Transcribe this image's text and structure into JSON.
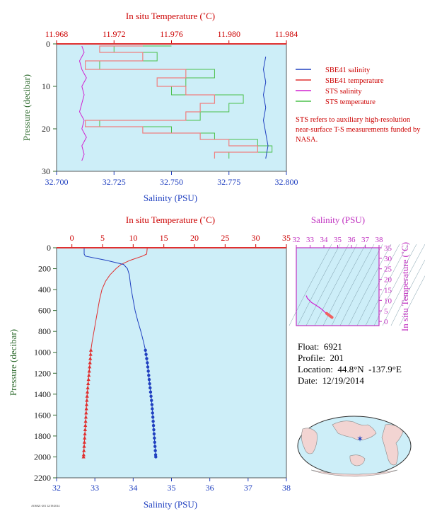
{
  "colors": {
    "temperature": "#e03030",
    "salinity": "#2040c0",
    "plot_bg": "#cdeef8",
    "sts_salinity": "#d020d0",
    "sts_temperature": "#4cc04c",
    "pressure_axis": "#2e6b2e",
    "ts_axis": "#c030c0"
  },
  "info": {
    "float_label": "Float:",
    "float_value": "6921",
    "profile_label": "Profile:",
    "profile_value": "201",
    "location_label": "Location:",
    "location_value": "44.8°N  -137.9°E",
    "date_label": "Date:",
    "date_value": "12/19/2014"
  },
  "note": "STS refers to auxiliary high-resolution near-surface T-S measurements funded by NASA.",
  "footer_code": "AO6921-201 12/19/2014",
  "chart_data": [
    {
      "id": "near-surface",
      "type": "line",
      "top_axis_label": "In situ Temperature (˚C)",
      "bottom_axis_label": "Salinity (PSU)",
      "left_axis_label": "Pressure (decibar)",
      "temperature_ticks": [
        "11.968",
        "11.972",
        "11.976",
        "11.980",
        "11.984"
      ],
      "temperature_range": [
        11.968,
        11.984
      ],
      "salinity_ticks": [
        "32.700",
        "32.725",
        "32.750",
        "32.775",
        "32.800"
      ],
      "salinity_range": [
        32.7,
        32.8
      ],
      "pressure_ticks": [
        "0",
        "10",
        "20",
        "30"
      ],
      "pressure_range": [
        0,
        30
      ],
      "legend": [
        {
          "label": "SBE41 salinity",
          "color": "#2040c0"
        },
        {
          "label": "SBE41 temperature",
          "color": "#e03030"
        },
        {
          "label": "STS salinity",
          "color": "#d020d0"
        },
        {
          "label": "STS temperature",
          "color": "#4cc04c"
        }
      ],
      "sbe41_salinity": {
        "pressure": [
          3,
          6,
          9,
          12,
          15,
          18,
          21,
          24,
          27
        ],
        "salinity": [
          32.791,
          32.79,
          32.791,
          32.79,
          32.791,
          32.79,
          32.791,
          32.792,
          32.791
        ]
      },
      "sts_salinity": {
        "pressure": [
          0.5,
          2,
          4,
          6,
          8,
          10,
          12,
          14,
          16,
          18,
          20,
          22,
          24,
          26,
          27.5
        ],
        "salinity": [
          32.711,
          32.712,
          32.71,
          32.711,
          32.713,
          32.711,
          32.712,
          32.711,
          32.71,
          32.712,
          32.711,
          32.713,
          32.711,
          32.712,
          32.711
        ]
      },
      "sts_temperature": {
        "pressure": [
          0.5,
          2,
          4,
          6,
          8,
          10,
          12,
          14,
          16,
          18,
          19.5,
          21,
          22.5,
          24,
          25.5,
          27
        ],
        "temperature": [
          11.976,
          11.972,
          11.975,
          11.971,
          11.979,
          11.977,
          11.976,
          11.981,
          11.98,
          11.978,
          11.971,
          11.976,
          11.979,
          11.982,
          11.983,
          11.98
        ]
      },
      "sbe41_temperature": {
        "pressure": [
          0.5,
          2,
          4,
          6,
          8,
          10,
          12,
          14,
          16,
          18,
          19.5,
          21,
          22.5,
          24,
          25.5,
          27
        ],
        "temperature": [
          11.974,
          11.971,
          11.974,
          11.97,
          11.977,
          11.975,
          11.977,
          11.979,
          11.978,
          11.977,
          11.97,
          11.974,
          11.978,
          11.98,
          11.982,
          11.979
        ]
      }
    },
    {
      "id": "full-profile",
      "type": "line",
      "top_axis_label": "In situ Temperature (˚C)",
      "bottom_axis_label": "Salinity (PSU)",
      "left_axis_label": "Pressure (decibar)",
      "temperature_ticks": [
        "0",
        "5",
        "10",
        "15",
        "20",
        "25",
        "30",
        "35"
      ],
      "temperature_range": [
        -2.5,
        35
      ],
      "salinity_ticks": [
        "32",
        "33",
        "34",
        "35",
        "36",
        "37",
        "38"
      ],
      "salinity_range": [
        32,
        38
      ],
      "pressure_ticks": [
        "0",
        "200",
        "400",
        "600",
        "800",
        "1000",
        "1200",
        "1400",
        "1600",
        "1800",
        "2000",
        "2200"
      ],
      "pressure_range": [
        0,
        2200
      ],
      "temperature": {
        "pressure": [
          0,
          60,
          80,
          120,
          160,
          200,
          260,
          320,
          400,
          500,
          600,
          700,
          800,
          900,
          980,
          1100,
          1200,
          1300,
          1400,
          1500,
          1600,
          1700,
          1800,
          1900,
          2000
        ],
        "values": [
          12.3,
          12.2,
          11.5,
          9.5,
          8.0,
          7.2,
          6.2,
          5.5,
          4.9,
          4.5,
          4.2,
          3.9,
          3.6,
          3.3,
          3.1,
          2.95,
          2.8,
          2.65,
          2.5,
          2.4,
          2.3,
          2.2,
          2.1,
          2.0,
          1.9
        ]
      },
      "salinity": {
        "pressure": [
          0,
          60,
          80,
          120,
          160,
          200,
          260,
          320,
          400,
          500,
          600,
          700,
          800,
          900,
          980,
          1100,
          1200,
          1300,
          1400,
          1500,
          1600,
          1700,
          1800,
          1900,
          2000
        ],
        "values": [
          32.72,
          32.72,
          32.75,
          33.3,
          33.75,
          33.85,
          33.9,
          33.92,
          33.95,
          34.0,
          34.05,
          34.12,
          34.2,
          34.27,
          34.32,
          34.37,
          34.4,
          34.43,
          34.46,
          34.49,
          34.51,
          34.53,
          34.55,
          34.57,
          34.59
        ]
      },
      "bottle_pressures": [
        980,
        1020,
        1060,
        1100,
        1140,
        1180,
        1220,
        1260,
        1300,
        1340,
        1380,
        1420,
        1460,
        1500,
        1540,
        1580,
        1620,
        1660,
        1700,
        1740,
        1780,
        1820,
        1860,
        1900,
        1940,
        1980,
        2000
      ]
    },
    {
      "id": "ts-diagram",
      "type": "line",
      "top_axis_label": "Salinity (PSU)",
      "right_axis_label": "In situ Temperature (˚C)",
      "salinity_ticks": [
        "32",
        "33",
        "34",
        "35",
        "36",
        "37",
        "38"
      ],
      "salinity_range": [
        32,
        38
      ],
      "temperature_ticks": [
        "0",
        "5",
        "10",
        "15",
        "20",
        "25",
        "30",
        "35"
      ],
      "temperature_range": [
        -2,
        35
      ],
      "ts_salinity": [
        32.72,
        32.8,
        33.1,
        33.4,
        33.7,
        33.9,
        34.05,
        34.2,
        34.4,
        34.59
      ],
      "ts_temperature": [
        12.3,
        11.0,
        9.0,
        7.8,
        6.5,
        5.5,
        4.5,
        3.8,
        2.8,
        1.9
      ]
    }
  ]
}
